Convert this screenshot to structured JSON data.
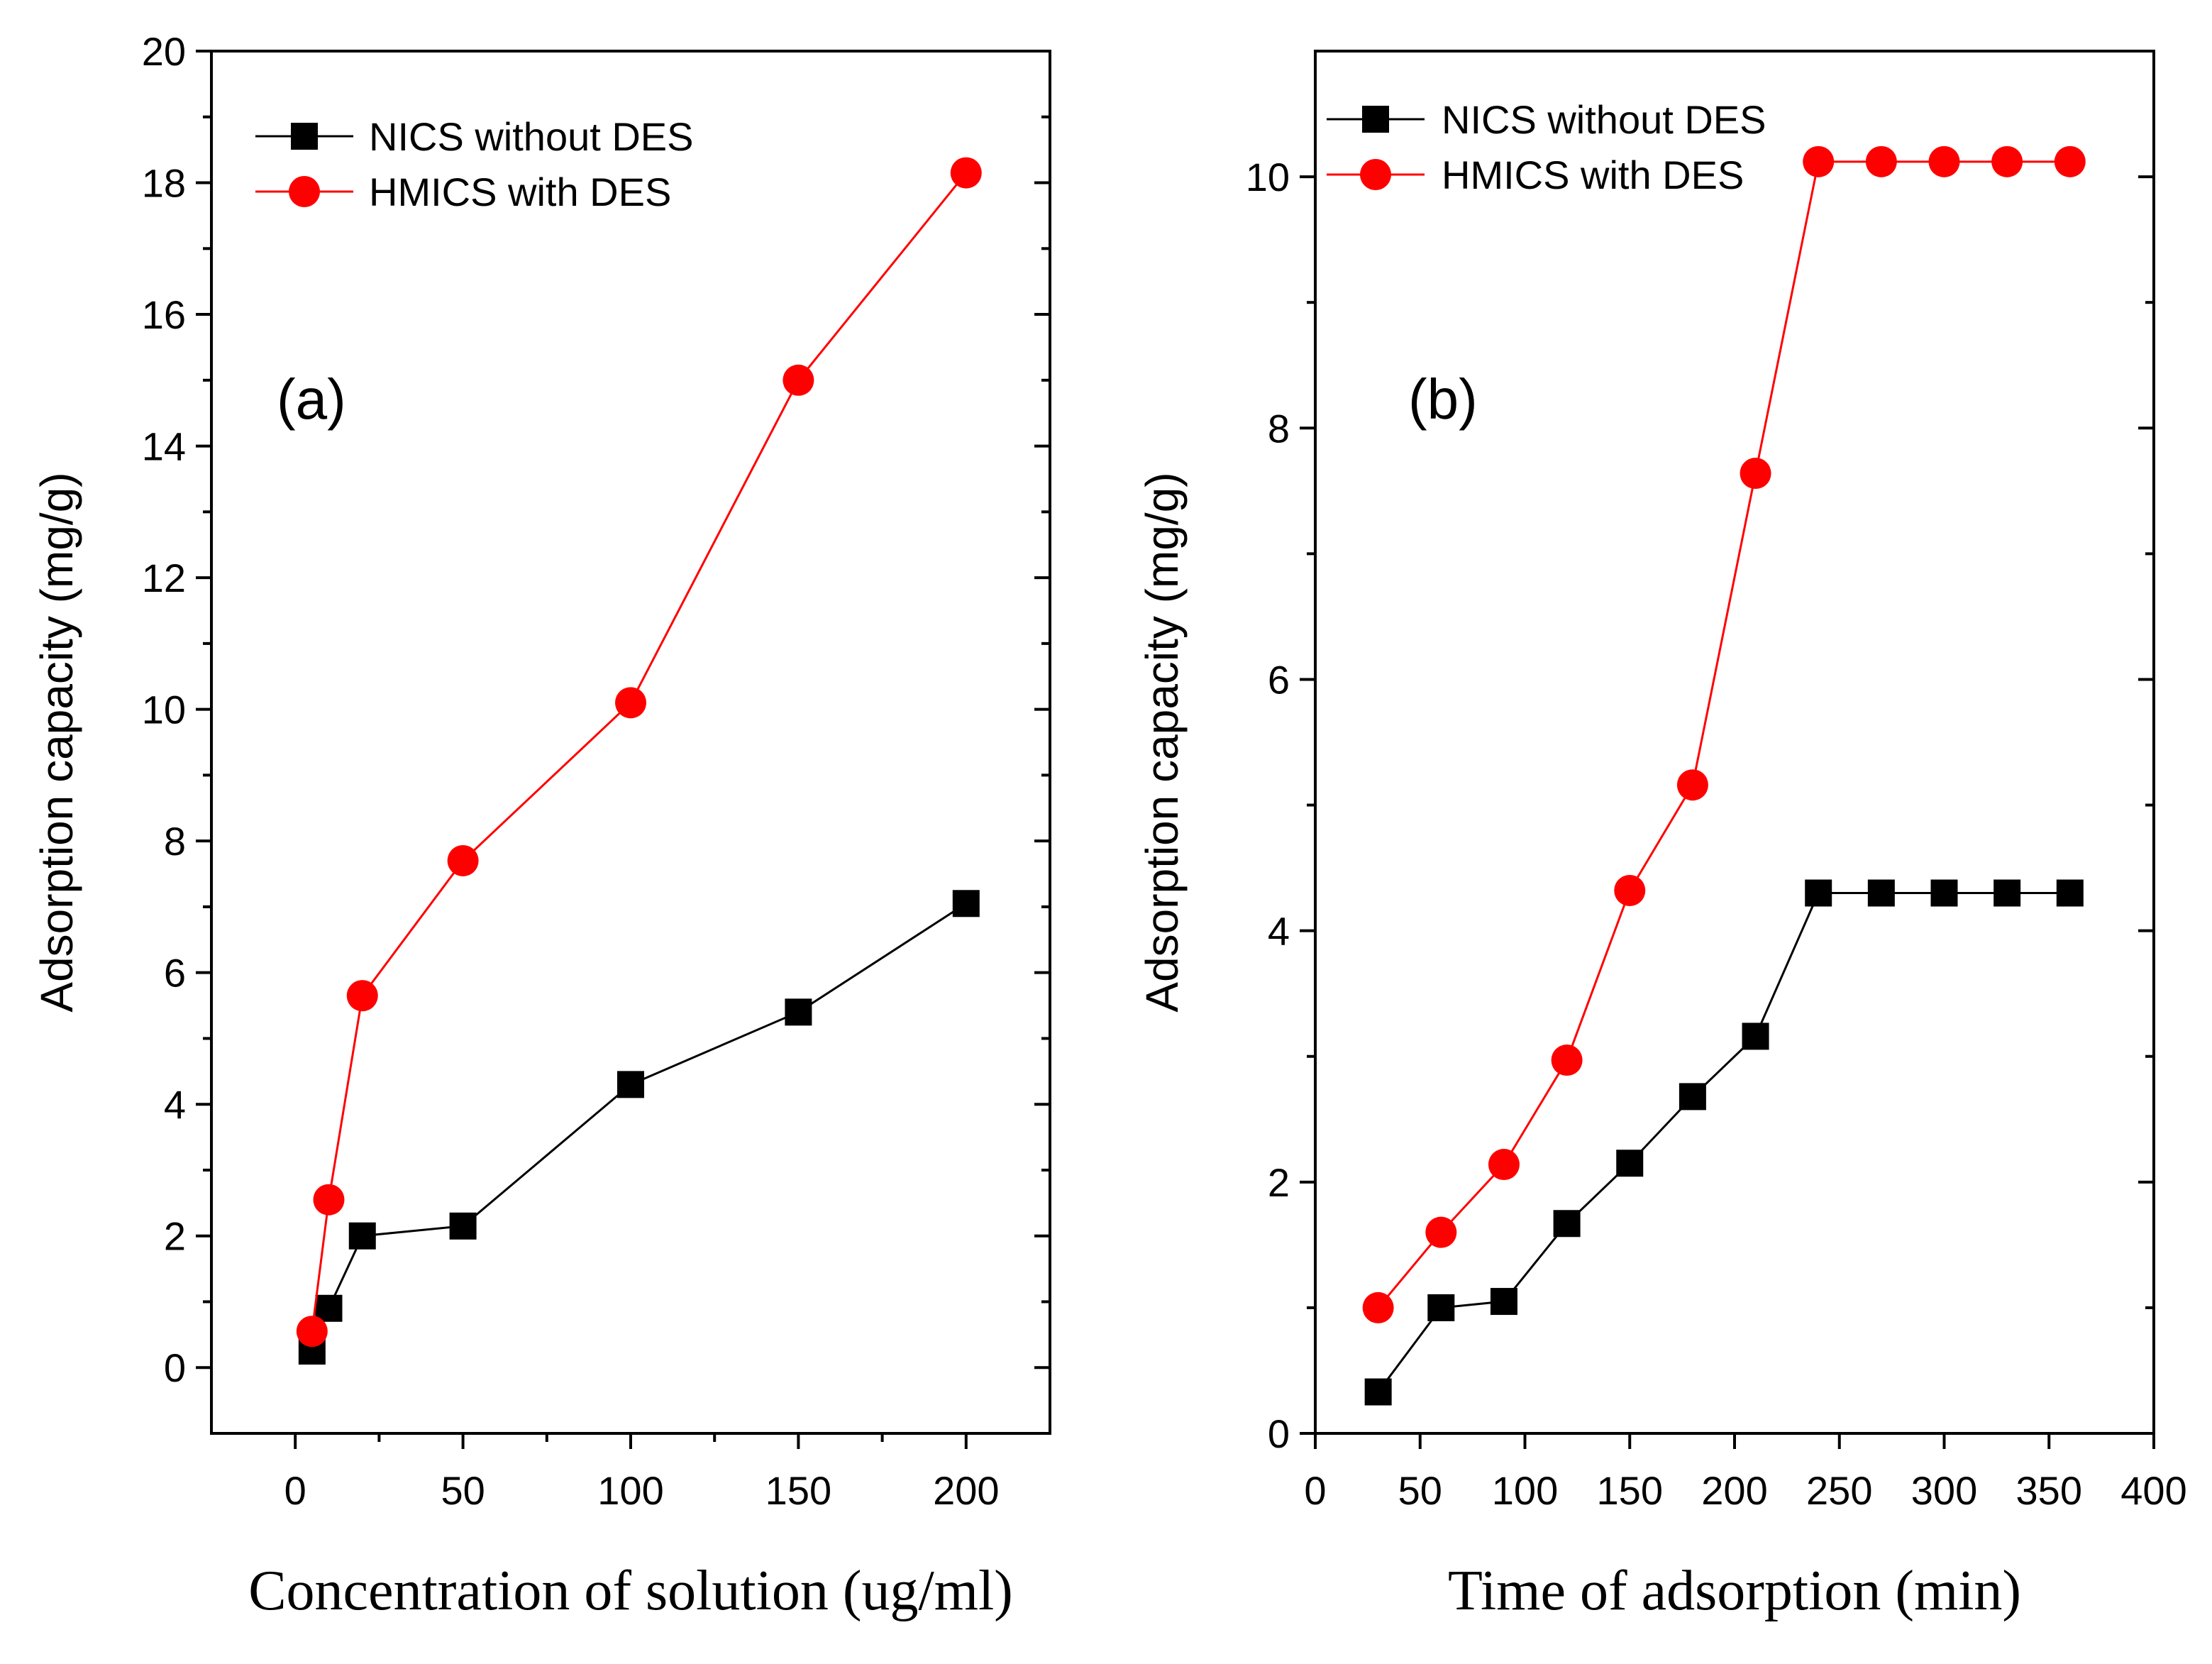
{
  "chart_data": [
    {
      "type": "line",
      "panel_label": "(a)",
      "xlabel": "Concentration of solution (ug/ml)",
      "ylabel": "Adsorption capacity (mg/g)",
      "xlim": [
        -25,
        225
      ],
      "ylim": [
        -1,
        20
      ],
      "xticks": [
        0,
        50,
        100,
        150,
        200
      ],
      "yticks": [
        0,
        2,
        4,
        6,
        8,
        10,
        12,
        14,
        16,
        18,
        20
      ],
      "legend_position": "top-left",
      "series": [
        {
          "name": "NICS without DES",
          "color": "#000000",
          "marker": "square",
          "x": [
            5,
            10,
            20,
            50,
            100,
            150,
            200
          ],
          "y": [
            0.25,
            0.9,
            2.0,
            2.15,
            4.3,
            5.4,
            7.05
          ]
        },
        {
          "name": "HMICS with DES",
          "color": "#ff0000",
          "marker": "circle",
          "x": [
            5,
            10,
            20,
            50,
            100,
            150,
            200
          ],
          "y": [
            0.55,
            2.55,
            5.65,
            7.7,
            10.1,
            15.0,
            18.15
          ]
        }
      ]
    },
    {
      "type": "line",
      "panel_label": "(b)",
      "xlabel": "Time of adsorption (min)",
      "ylabel": "Adsorption capacity (mg/g)",
      "xlim": [
        0,
        400
      ],
      "ylim": [
        0,
        11
      ],
      "xticks": [
        0,
        50,
        100,
        150,
        200,
        250,
        300,
        350,
        400
      ],
      "yticks": [
        0,
        2,
        4,
        6,
        8,
        10
      ],
      "legend_position": "top-left",
      "series": [
        {
          "name": "NICS without DES",
          "color": "#000000",
          "marker": "square",
          "x": [
            30,
            60,
            90,
            120,
            150,
            180,
            210,
            240,
            270,
            300,
            330,
            360
          ],
          "y": [
            0.33,
            1.0,
            1.05,
            1.67,
            2.15,
            2.68,
            3.16,
            4.3,
            4.3,
            4.3,
            4.3,
            4.3
          ]
        },
        {
          "name": "HMICS with DES",
          "color": "#ff0000",
          "marker": "circle",
          "x": [
            30,
            60,
            90,
            120,
            150,
            180,
            210,
            240,
            270,
            300,
            330,
            360
          ],
          "y": [
            1.0,
            1.6,
            2.14,
            2.97,
            4.32,
            5.16,
            7.64,
            10.12,
            10.12,
            10.12,
            10.12,
            10.12
          ]
        }
      ]
    }
  ]
}
